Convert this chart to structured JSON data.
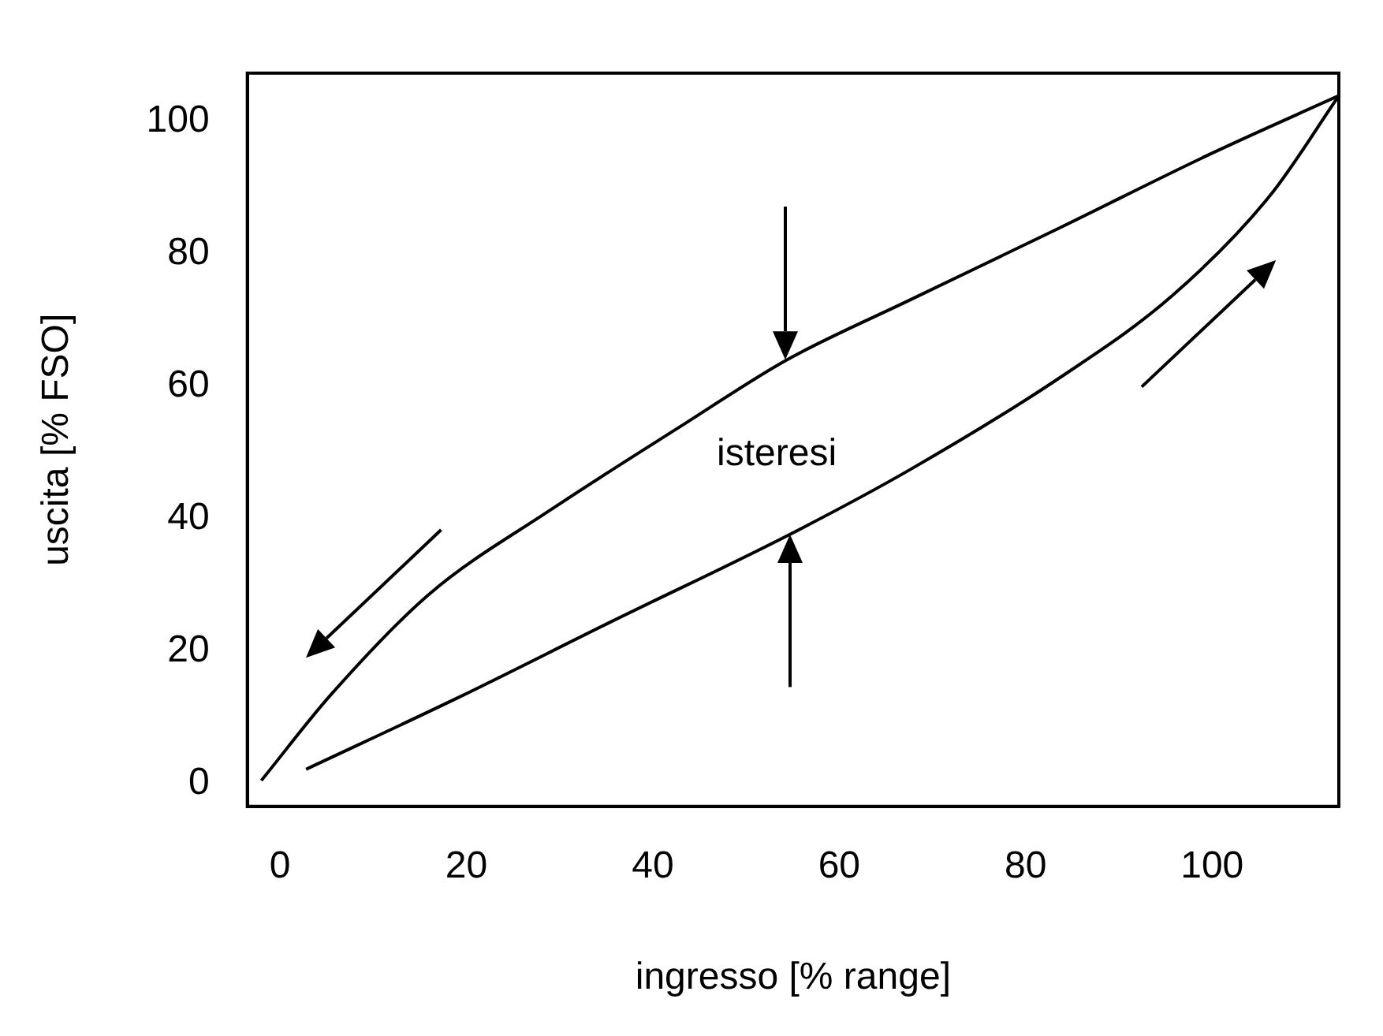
{
  "chart_data": {
    "type": "line",
    "xlabel": "ingresso [% range]",
    "ylabel": "uscita [% FSO]",
    "xlim": [
      -3.5,
      113.6
    ],
    "ylim": [
      -3.4,
      107.2
    ],
    "xticks": [
      0,
      20,
      40,
      60,
      80,
      100
    ],
    "yticks": [
      0,
      20,
      40,
      60,
      80,
      100
    ],
    "grid": false,
    "legend": false,
    "marker": "none",
    "line_style": "solid",
    "annotations": [
      "isteresi"
    ],
    "series": [
      {
        "color": "#000000",
        "x": [
          -2.0,
          5.5,
          16,
          29,
          43.4,
          54.3,
          67.6,
          83.7,
          99.8,
          113.6
        ],
        "values": [
          0.5,
          13.5,
          28.6,
          41.3,
          54.3,
          63.9,
          73,
          83.9,
          95,
          103.8
        ]
      },
      {
        "color": "#000000",
        "x": [
          2.8,
          19.1,
          35.3,
          54.8,
          67.6,
          83.7,
          95.7,
          106.2,
          113.6
        ],
        "values": [
          2.2,
          13,
          24.3,
          37.7,
          47.4,
          61.3,
          73.6,
          88.7,
          103.8
        ]
      }
    ]
  }
}
